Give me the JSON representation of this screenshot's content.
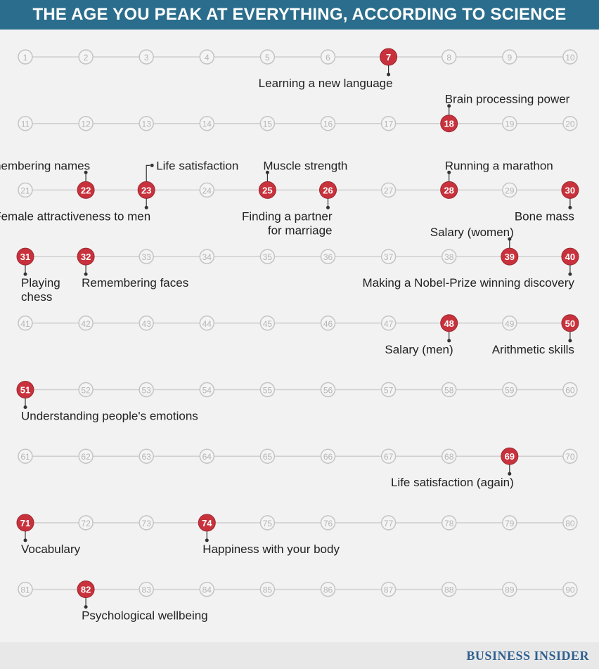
{
  "header": {
    "title": "THE AGE YOU PEAK AT EVERYTHING, ACCORDING TO SCIENCE"
  },
  "footer": {
    "brand": "BUSINESS INSIDER"
  },
  "colors": {
    "header_bg": "#2a6d8c",
    "peak_fill": "#c8323c",
    "node_stroke": "#c4c4c4",
    "node_text": "#b5b5b5",
    "line": "#cfcfcf",
    "label": "#222222",
    "brand": "#2f5f8f"
  },
  "timeline": {
    "start_age": 1,
    "end_age": 90,
    "ages_per_row": 10,
    "peak_ages": [
      7,
      18,
      22,
      23,
      25,
      26,
      28,
      30,
      31,
      32,
      39,
      40,
      48,
      50,
      51,
      69,
      71,
      74,
      82
    ],
    "labels": [
      {
        "age": 7,
        "side": "below",
        "anchor": "end",
        "lines": [
          "Learning a new language"
        ]
      },
      {
        "age": 18,
        "side": "above",
        "anchor": "start",
        "lines": [
          "Brain processing power"
        ]
      },
      {
        "age": 22,
        "side": "above",
        "anchor": "end",
        "lines": [
          "Remembering names"
        ]
      },
      {
        "age": 23,
        "side": "above",
        "anchor": "start",
        "bracket": true,
        "lines": [
          "Life satisfaction"
        ]
      },
      {
        "age": 23,
        "side": "below",
        "anchor": "end",
        "lines": [
          "Female attractiveness to men"
        ]
      },
      {
        "age": 25,
        "side": "above",
        "anchor": "start",
        "lines": [
          "Muscle strength"
        ]
      },
      {
        "age": 26,
        "side": "below",
        "anchor": "end",
        "lines": [
          "Finding a partner",
          "for marriage"
        ]
      },
      {
        "age": 28,
        "side": "above",
        "anchor": "start",
        "lines": [
          "Running a marathon"
        ]
      },
      {
        "age": 30,
        "side": "below",
        "anchor": "end",
        "lines": [
          "Bone mass"
        ]
      },
      {
        "age": 31,
        "side": "below",
        "anchor": "start",
        "lines": [
          "Playing",
          "chess"
        ]
      },
      {
        "age": 32,
        "side": "below",
        "anchor": "start",
        "lines": [
          "Remembering faces"
        ]
      },
      {
        "age": 39,
        "side": "above",
        "anchor": "end",
        "lines": [
          "Salary (women)"
        ]
      },
      {
        "age": 40,
        "side": "below",
        "anchor": "end",
        "lines": [
          "Making a Nobel-Prize winning discovery"
        ]
      },
      {
        "age": 48,
        "side": "below",
        "anchor": "end",
        "lines": [
          "Salary (men)"
        ]
      },
      {
        "age": 50,
        "side": "below",
        "anchor": "end",
        "lines": [
          "Arithmetic skills"
        ]
      },
      {
        "age": 51,
        "side": "below",
        "anchor": "start",
        "lines": [
          "Understanding people's emotions"
        ]
      },
      {
        "age": 69,
        "side": "below",
        "anchor": "end",
        "lines": [
          "Life satisfaction (again)"
        ]
      },
      {
        "age": 71,
        "side": "below",
        "anchor": "start",
        "lines": [
          "Vocabulary"
        ]
      },
      {
        "age": 74,
        "side": "below",
        "anchor": "start",
        "lines": [
          "Happiness with your body"
        ]
      },
      {
        "age": 82,
        "side": "below",
        "anchor": "start",
        "lines": [
          "Psychological wellbeing"
        ]
      }
    ]
  }
}
